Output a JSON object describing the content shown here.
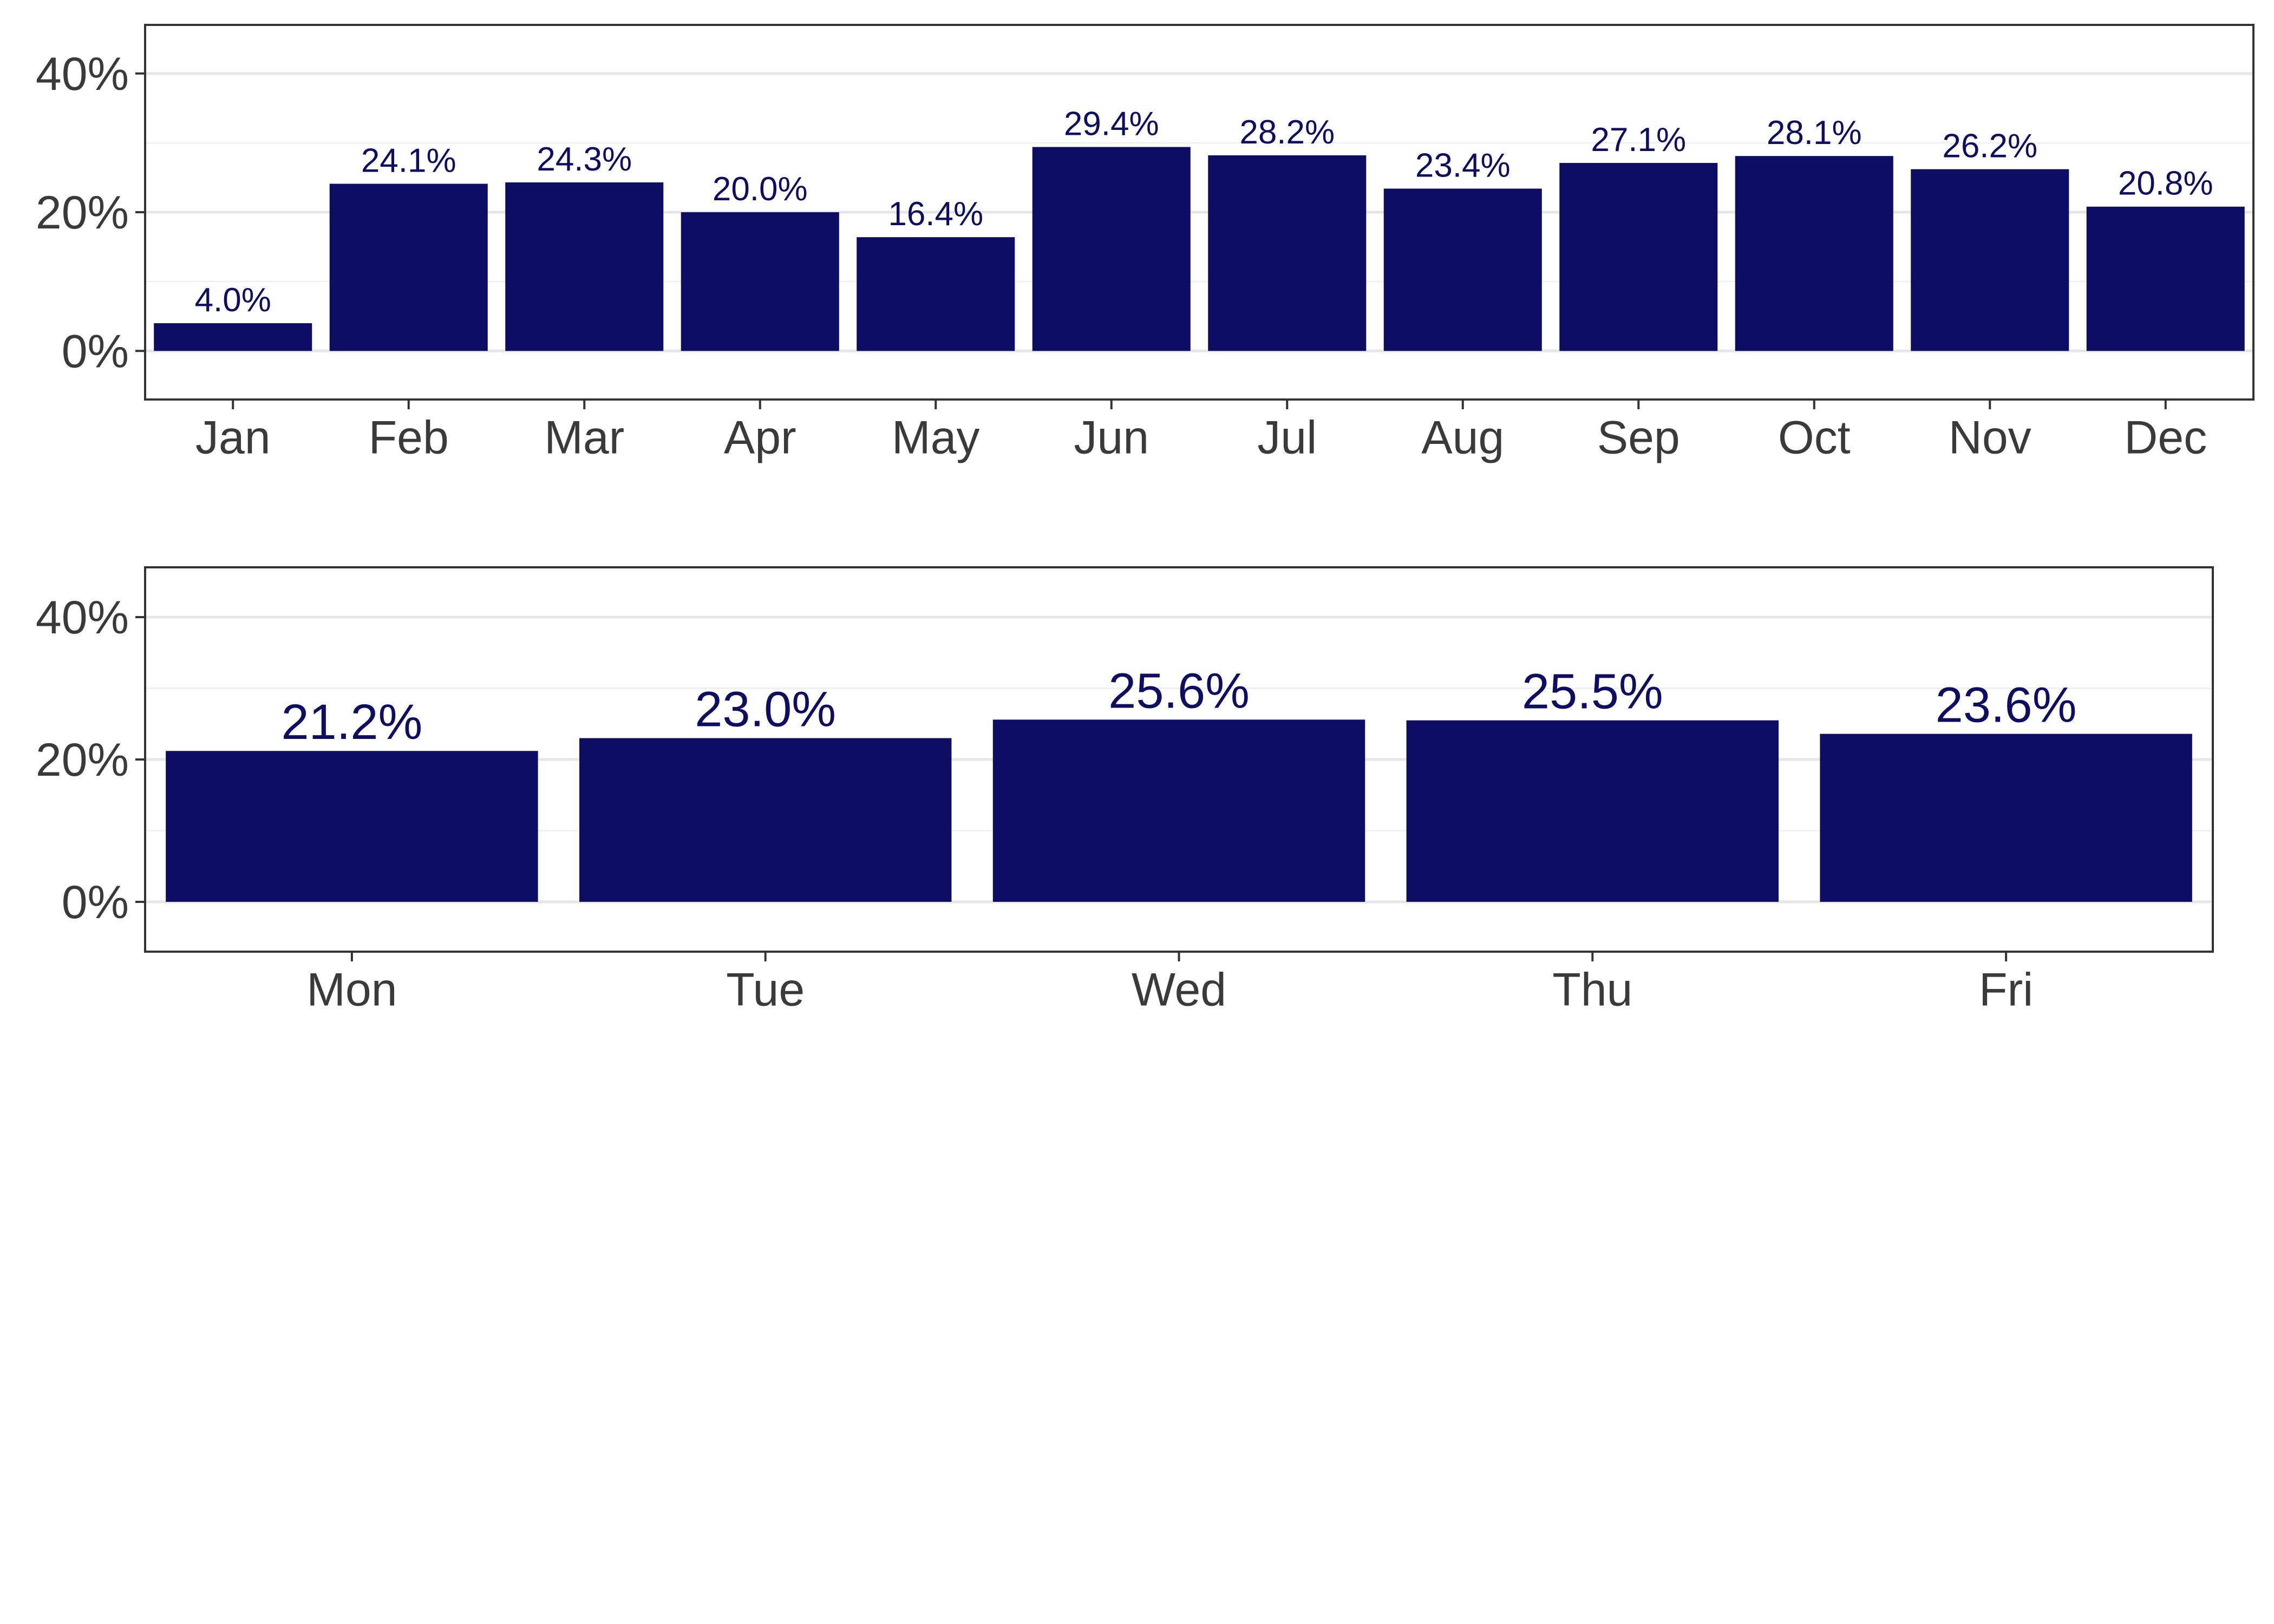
{
  "colors": {
    "bar": "#0D0D63",
    "label": "#0D0D63",
    "panel_border": "#333333",
    "grid_major": "#E6E6E6",
    "grid_minor": "#F0F0F0",
    "tick_text": "#3A3A3A",
    "background": "#FFFFFF"
  },
  "chart_data": [
    {
      "type": "bar",
      "title": "",
      "xlabel": "",
      "ylabel": "",
      "categories": [
        "Jan",
        "Feb",
        "Mar",
        "Apr",
        "May",
        "Jun",
        "Jul",
        "Aug",
        "Sep",
        "Oct",
        "Nov",
        "Dec"
      ],
      "values": [
        4.0,
        24.1,
        24.3,
        20.0,
        16.4,
        29.4,
        28.2,
        23.4,
        27.1,
        28.1,
        26.2,
        20.8
      ],
      "value_labels": [
        "4.0%",
        "24.1%",
        "24.3%",
        "20.0%",
        "16.4%",
        "29.4%",
        "28.2%",
        "23.4%",
        "27.1%",
        "28.1%",
        "26.2%",
        "20.8%"
      ],
      "ylim": [
        -7,
        47
      ],
      "yticks": [
        0,
        20,
        40
      ],
      "ytick_labels": [
        "0%",
        "20%",
        "40%"
      ],
      "grid": true,
      "legend": "none"
    },
    {
      "type": "bar",
      "title": "",
      "xlabel": "",
      "ylabel": "",
      "categories": [
        "Mon",
        "Tue",
        "Wed",
        "Thu",
        "Fri"
      ],
      "values": [
        21.2,
        23.0,
        25.6,
        25.5,
        23.6
      ],
      "value_labels": [
        "21.2%",
        "23.0%",
        "25.6%",
        "25.5%",
        "23.6%"
      ],
      "ylim": [
        -7,
        47
      ],
      "yticks": [
        0,
        20,
        40
      ],
      "ytick_labels": [
        "0%",
        "20%",
        "40%"
      ],
      "grid": true,
      "legend": "none"
    }
  ]
}
